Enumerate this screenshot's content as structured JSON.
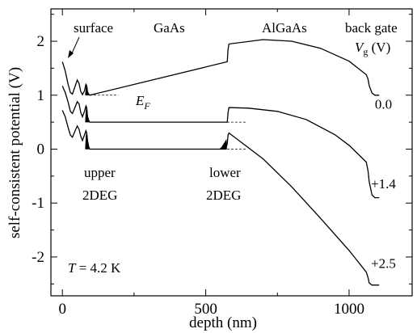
{
  "chart_data": {
    "type": "line",
    "ylabel": "self-consistent potential (V)",
    "xlabel": "depth (nm)",
    "xlim": [
      -40,
      1220
    ],
    "ylim": [
      -2.72,
      2.6
    ],
    "x_ticks": [
      0,
      500,
      1000
    ],
    "x_tick_labels": [
      "0",
      "500",
      "1000"
    ],
    "y_ticks": [
      2,
      1,
      0,
      -1,
      -2
    ],
    "y_tick_labels": [
      "2",
      "1",
      "0",
      "-1",
      "-2"
    ],
    "grid": false,
    "legend": "none",
    "series": [
      {
        "name": "0.0",
        "label_pos": [
          1120,
          0.75
        ],
        "points": [
          [
            0,
            1.62
          ],
          [
            10,
            1.45
          ],
          [
            20,
            1.2
          ],
          [
            28,
            1.05
          ],
          [
            35,
            1.02
          ],
          [
            43,
            1.14
          ],
          [
            52,
            1.28
          ],
          [
            58,
            1.22
          ],
          [
            64,
            1.07
          ],
          [
            70,
            1.01
          ],
          [
            77,
            1.08
          ],
          [
            82,
            1.2
          ],
          [
            85,
            1.17
          ],
          [
            88,
            1.06
          ],
          [
            92,
            1.02
          ],
          [
            95,
            1.0
          ],
          [
            575,
            1.62
          ],
          [
            578,
            1.85
          ],
          [
            581,
            1.95
          ],
          [
            700,
            2.03
          ],
          [
            800,
            2.0
          ],
          [
            900,
            1.87
          ],
          [
            1000,
            1.63
          ],
          [
            1060,
            1.38
          ],
          [
            1066,
            1.3
          ],
          [
            1070,
            1.18
          ],
          [
            1080,
            1.04
          ],
          [
            1090,
            1.0
          ],
          [
            1105,
            1.0
          ]
        ]
      },
      {
        "name": "+1.4",
        "label_pos": [
          1120,
          -0.73
        ],
        "points": [
          [
            0,
            1.17
          ],
          [
            10,
            1.05
          ],
          [
            20,
            0.87
          ],
          [
            28,
            0.7
          ],
          [
            35,
            0.66
          ],
          [
            43,
            0.76
          ],
          [
            52,
            0.88
          ],
          [
            58,
            0.84
          ],
          [
            64,
            0.68
          ],
          [
            70,
            0.6
          ],
          [
            77,
            0.7
          ],
          [
            82,
            0.8
          ],
          [
            85,
            0.76
          ],
          [
            88,
            0.6
          ],
          [
            92,
            0.53
          ],
          [
            95,
            0.5
          ],
          [
            575,
            0.5
          ],
          [
            578,
            0.68
          ],
          [
            581,
            0.77
          ],
          [
            650,
            0.76
          ],
          [
            750,
            0.7
          ],
          [
            850,
            0.55
          ],
          [
            950,
            0.27
          ],
          [
            1000,
            0.07
          ],
          [
            1060,
            -0.24
          ],
          [
            1066,
            -0.4
          ],
          [
            1070,
            -0.6
          ],
          [
            1080,
            -0.85
          ],
          [
            1090,
            -0.9
          ],
          [
            1105,
            -0.9
          ]
        ]
      },
      {
        "name": "+2.5",
        "label_pos": [
          1120,
          -2.2
        ],
        "points": [
          [
            0,
            0.72
          ],
          [
            10,
            0.6
          ],
          [
            20,
            0.4
          ],
          [
            28,
            0.26
          ],
          [
            35,
            0.22
          ],
          [
            43,
            0.32
          ],
          [
            52,
            0.43
          ],
          [
            58,
            0.37
          ],
          [
            64,
            0.24
          ],
          [
            70,
            0.16
          ],
          [
            77,
            0.26
          ],
          [
            82,
            0.34
          ],
          [
            85,
            0.3
          ],
          [
            88,
            0.15
          ],
          [
            92,
            0.05
          ],
          [
            95,
            0.0
          ],
          [
            570,
            0.0
          ],
          [
            575,
            0.1
          ],
          [
            578,
            0.26
          ],
          [
            581,
            0.3
          ],
          [
            700,
            -0.18
          ],
          [
            800,
            -0.7
          ],
          [
            900,
            -1.28
          ],
          [
            1000,
            -1.88
          ],
          [
            1060,
            -2.28
          ],
          [
            1066,
            -2.38
          ],
          [
            1070,
            -2.48
          ],
          [
            1080,
            -2.52
          ],
          [
            1090,
            -2.52
          ],
          [
            1105,
            -2.52
          ]
        ]
      }
    ],
    "fermi_levels": [
      {
        "from": 95,
        "to": 195,
        "y": 1.0
      },
      {
        "from": 95,
        "to": 640,
        "y": 0.5
      },
      {
        "from": 95,
        "to": 640,
        "y": 0.0
      }
    ],
    "filled_regions": [
      {
        "points": [
          [
            80,
            1.0
          ],
          [
            82,
            1.12
          ],
          [
            84,
            1.2
          ],
          [
            86,
            1.17
          ],
          [
            88,
            1.06
          ],
          [
            90,
            1.02
          ],
          [
            92,
            1.0
          ]
        ]
      },
      {
        "points": [
          [
            80,
            0.5
          ],
          [
            82,
            0.7
          ],
          [
            84,
            0.8
          ],
          [
            86,
            0.76
          ],
          [
            88,
            0.6
          ],
          [
            90,
            0.53
          ],
          [
            92,
            0.5
          ]
        ]
      },
      {
        "points": [
          [
            80,
            0.0
          ],
          [
            82,
            0.22
          ],
          [
            84,
            0.33
          ],
          [
            86,
            0.3
          ],
          [
            88,
            0.15
          ],
          [
            90,
            0.05
          ],
          [
            92,
            0.0
          ]
        ]
      },
      {
        "points": [
          [
            548,
            0.0
          ],
          [
            556,
            0.04
          ],
          [
            563,
            0.1
          ],
          [
            569,
            0.15
          ],
          [
            572,
            0.18
          ],
          [
            573,
            0.0
          ]
        ]
      }
    ],
    "annotations": {
      "surface": "surface",
      "gaas": "GaAs",
      "algaas": "AlGaAs",
      "back_gate": "back gate",
      "vg_label": "V",
      "vg_sub": "g",
      "vg_unit": " (V)",
      "ef": "E",
      "ef_sub": "F",
      "upper_line1": "upper",
      "upper_line2": "2DEG",
      "lower_line1": "lower",
      "lower_line2": "2DEG",
      "temp_t": "T",
      "temp_rest": " = 4.2 K"
    }
  }
}
